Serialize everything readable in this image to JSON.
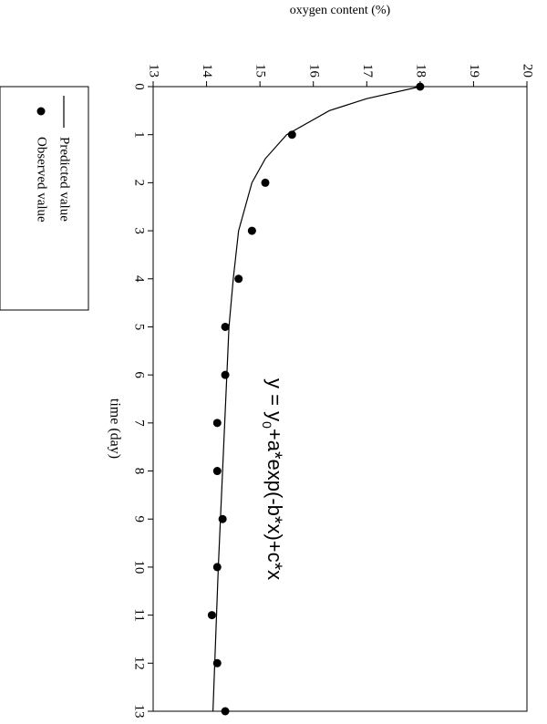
{
  "chart_data": {
    "type": "scatter",
    "x_label": "time (day)",
    "y_label": "oxygen content (%)",
    "annotation": [
      "y = y",
      "0",
      "+a*exp(-b*x)+c*x"
    ],
    "xlim": [
      0,
      13
    ],
    "xticks": [
      0,
      1,
      2,
      3,
      4,
      5,
      6,
      7,
      8,
      9,
      10,
      11,
      12,
      13
    ],
    "ylim": [
      13,
      20
    ],
    "yticks": [
      13,
      14,
      15,
      16,
      17,
      18,
      19,
      20
    ],
    "legend": "outside-bottom",
    "series": [
      {
        "name": "Predicted value",
        "mode": "line",
        "color": "#000000",
        "x": [
          0,
          0.25,
          0.5,
          1,
          1.5,
          2,
          3,
          4,
          5,
          6,
          8,
          10,
          13
        ],
        "values": [
          18.0,
          17.0,
          16.3,
          15.5,
          15.1,
          14.85,
          14.6,
          14.5,
          14.42,
          14.38,
          14.3,
          14.22,
          14.12
        ]
      },
      {
        "name": "Observed value",
        "mode": "markers",
        "color": "#000000",
        "x": [
          0,
          1,
          2,
          3,
          4,
          5,
          6,
          7,
          8,
          9,
          10,
          11,
          12,
          13
        ],
        "values": [
          18.0,
          15.6,
          15.1,
          14.85,
          14.6,
          14.35,
          14.35,
          14.2,
          14.2,
          14.3,
          14.2,
          14.1,
          14.2,
          14.35
        ]
      }
    ]
  }
}
